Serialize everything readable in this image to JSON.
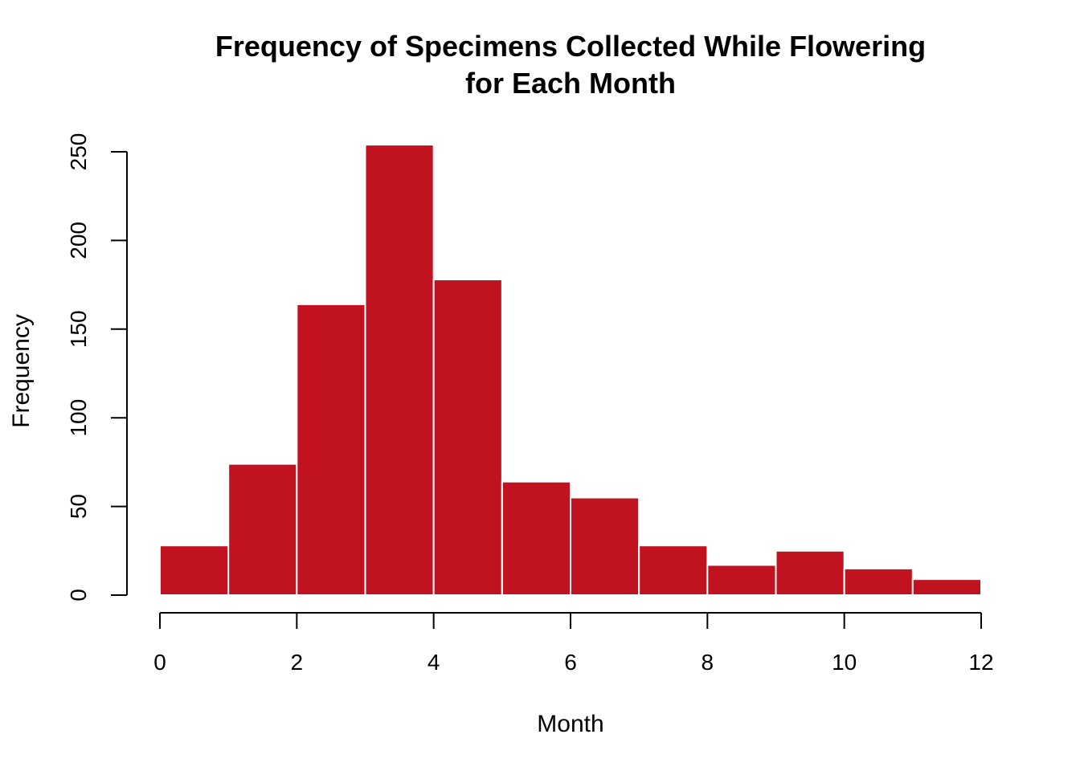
{
  "chart_data": {
    "type": "bar",
    "title_lines": [
      "Frequency of Specimens Collected While Flowering",
      "for Each Month"
    ],
    "xlabel": "Month",
    "ylabel": "Frequency",
    "bin_edges": [
      0,
      1,
      2,
      3,
      4,
      5,
      6,
      7,
      8,
      9,
      10,
      11,
      12
    ],
    "values": [
      28,
      74,
      164,
      254,
      178,
      64,
      55,
      28,
      17,
      25,
      15,
      9
    ],
    "xlim": [
      0,
      12
    ],
    "ylim": [
      0,
      250
    ],
    "x_ticks": [
      0,
      2,
      4,
      6,
      8,
      10,
      12
    ],
    "x_tick_labels": [
      "0",
      "2",
      "4",
      "6",
      "8",
      "10",
      "12"
    ],
    "y_ticks": [
      0,
      50,
      100,
      150,
      200,
      250
    ],
    "y_tick_labels": [
      "0",
      "50",
      "100",
      "150",
      "200",
      "250"
    ],
    "bar_color": "#C0121F",
    "bar_border_color": "#FFFFFF",
    "grid": false,
    "legend": "none"
  }
}
